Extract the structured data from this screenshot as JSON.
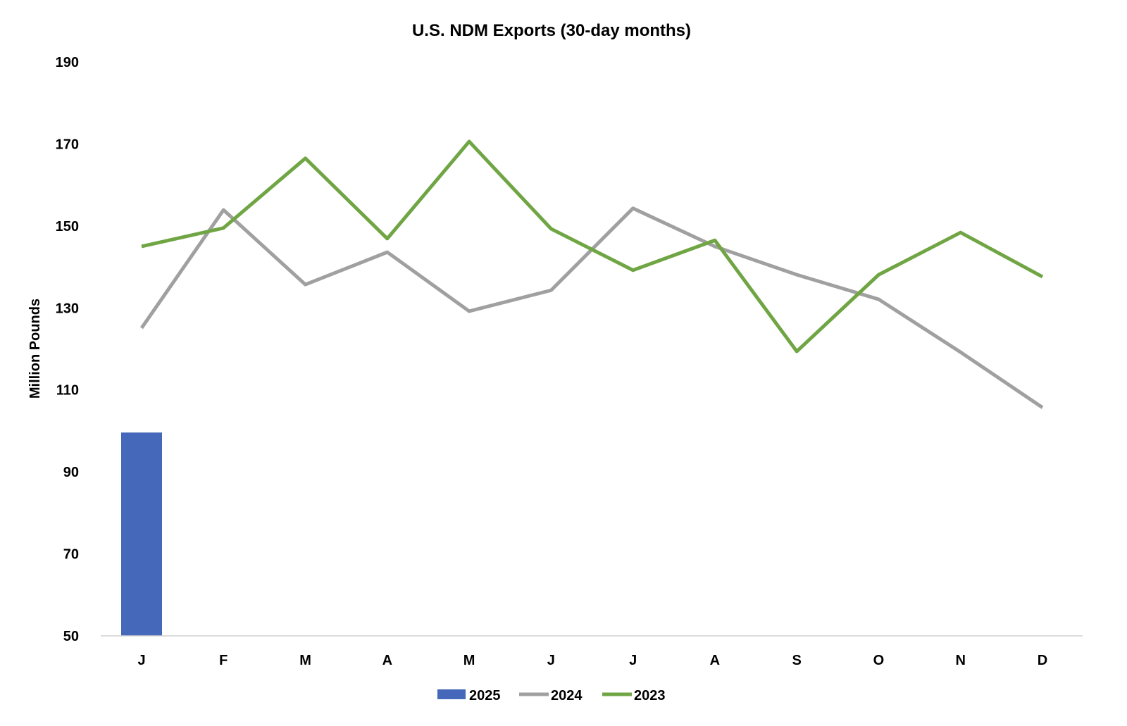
{
  "chart_data": {
    "type": "bar+line",
    "title": "U.S. NDM Exports (30-day months)",
    "xlabel": "",
    "ylabel": "Million Pounds",
    "ylim": [
      50,
      190
    ],
    "yticks": [
      50,
      70,
      90,
      110,
      130,
      150,
      170,
      190
    ],
    "categories": [
      "J",
      "F",
      "M",
      "A",
      "M",
      "J",
      "J",
      "A",
      "S",
      "O",
      "N",
      "D"
    ],
    "grid": false,
    "legend_position": "bottom",
    "series": [
      {
        "name": "2025",
        "kind": "bar",
        "color": "#4568BA",
        "values": [
          99.6,
          null,
          null,
          null,
          null,
          null,
          null,
          null,
          null,
          null,
          null,
          null
        ]
      },
      {
        "name": "2024",
        "kind": "line",
        "color": "#A0A0A0",
        "values": [
          125.1,
          153.9,
          135.7,
          143.6,
          129.2,
          134.3,
          154.3,
          145.0,
          138.1,
          132.1,
          119.2,
          105.7
        ]
      },
      {
        "name": "2023",
        "kind": "line",
        "color": "#70A544",
        "values": [
          145.0,
          149.5,
          166.5,
          146.9,
          170.6,
          149.3,
          139.2,
          146.5,
          119.4,
          138.1,
          148.4,
          137.6
        ]
      }
    ]
  }
}
